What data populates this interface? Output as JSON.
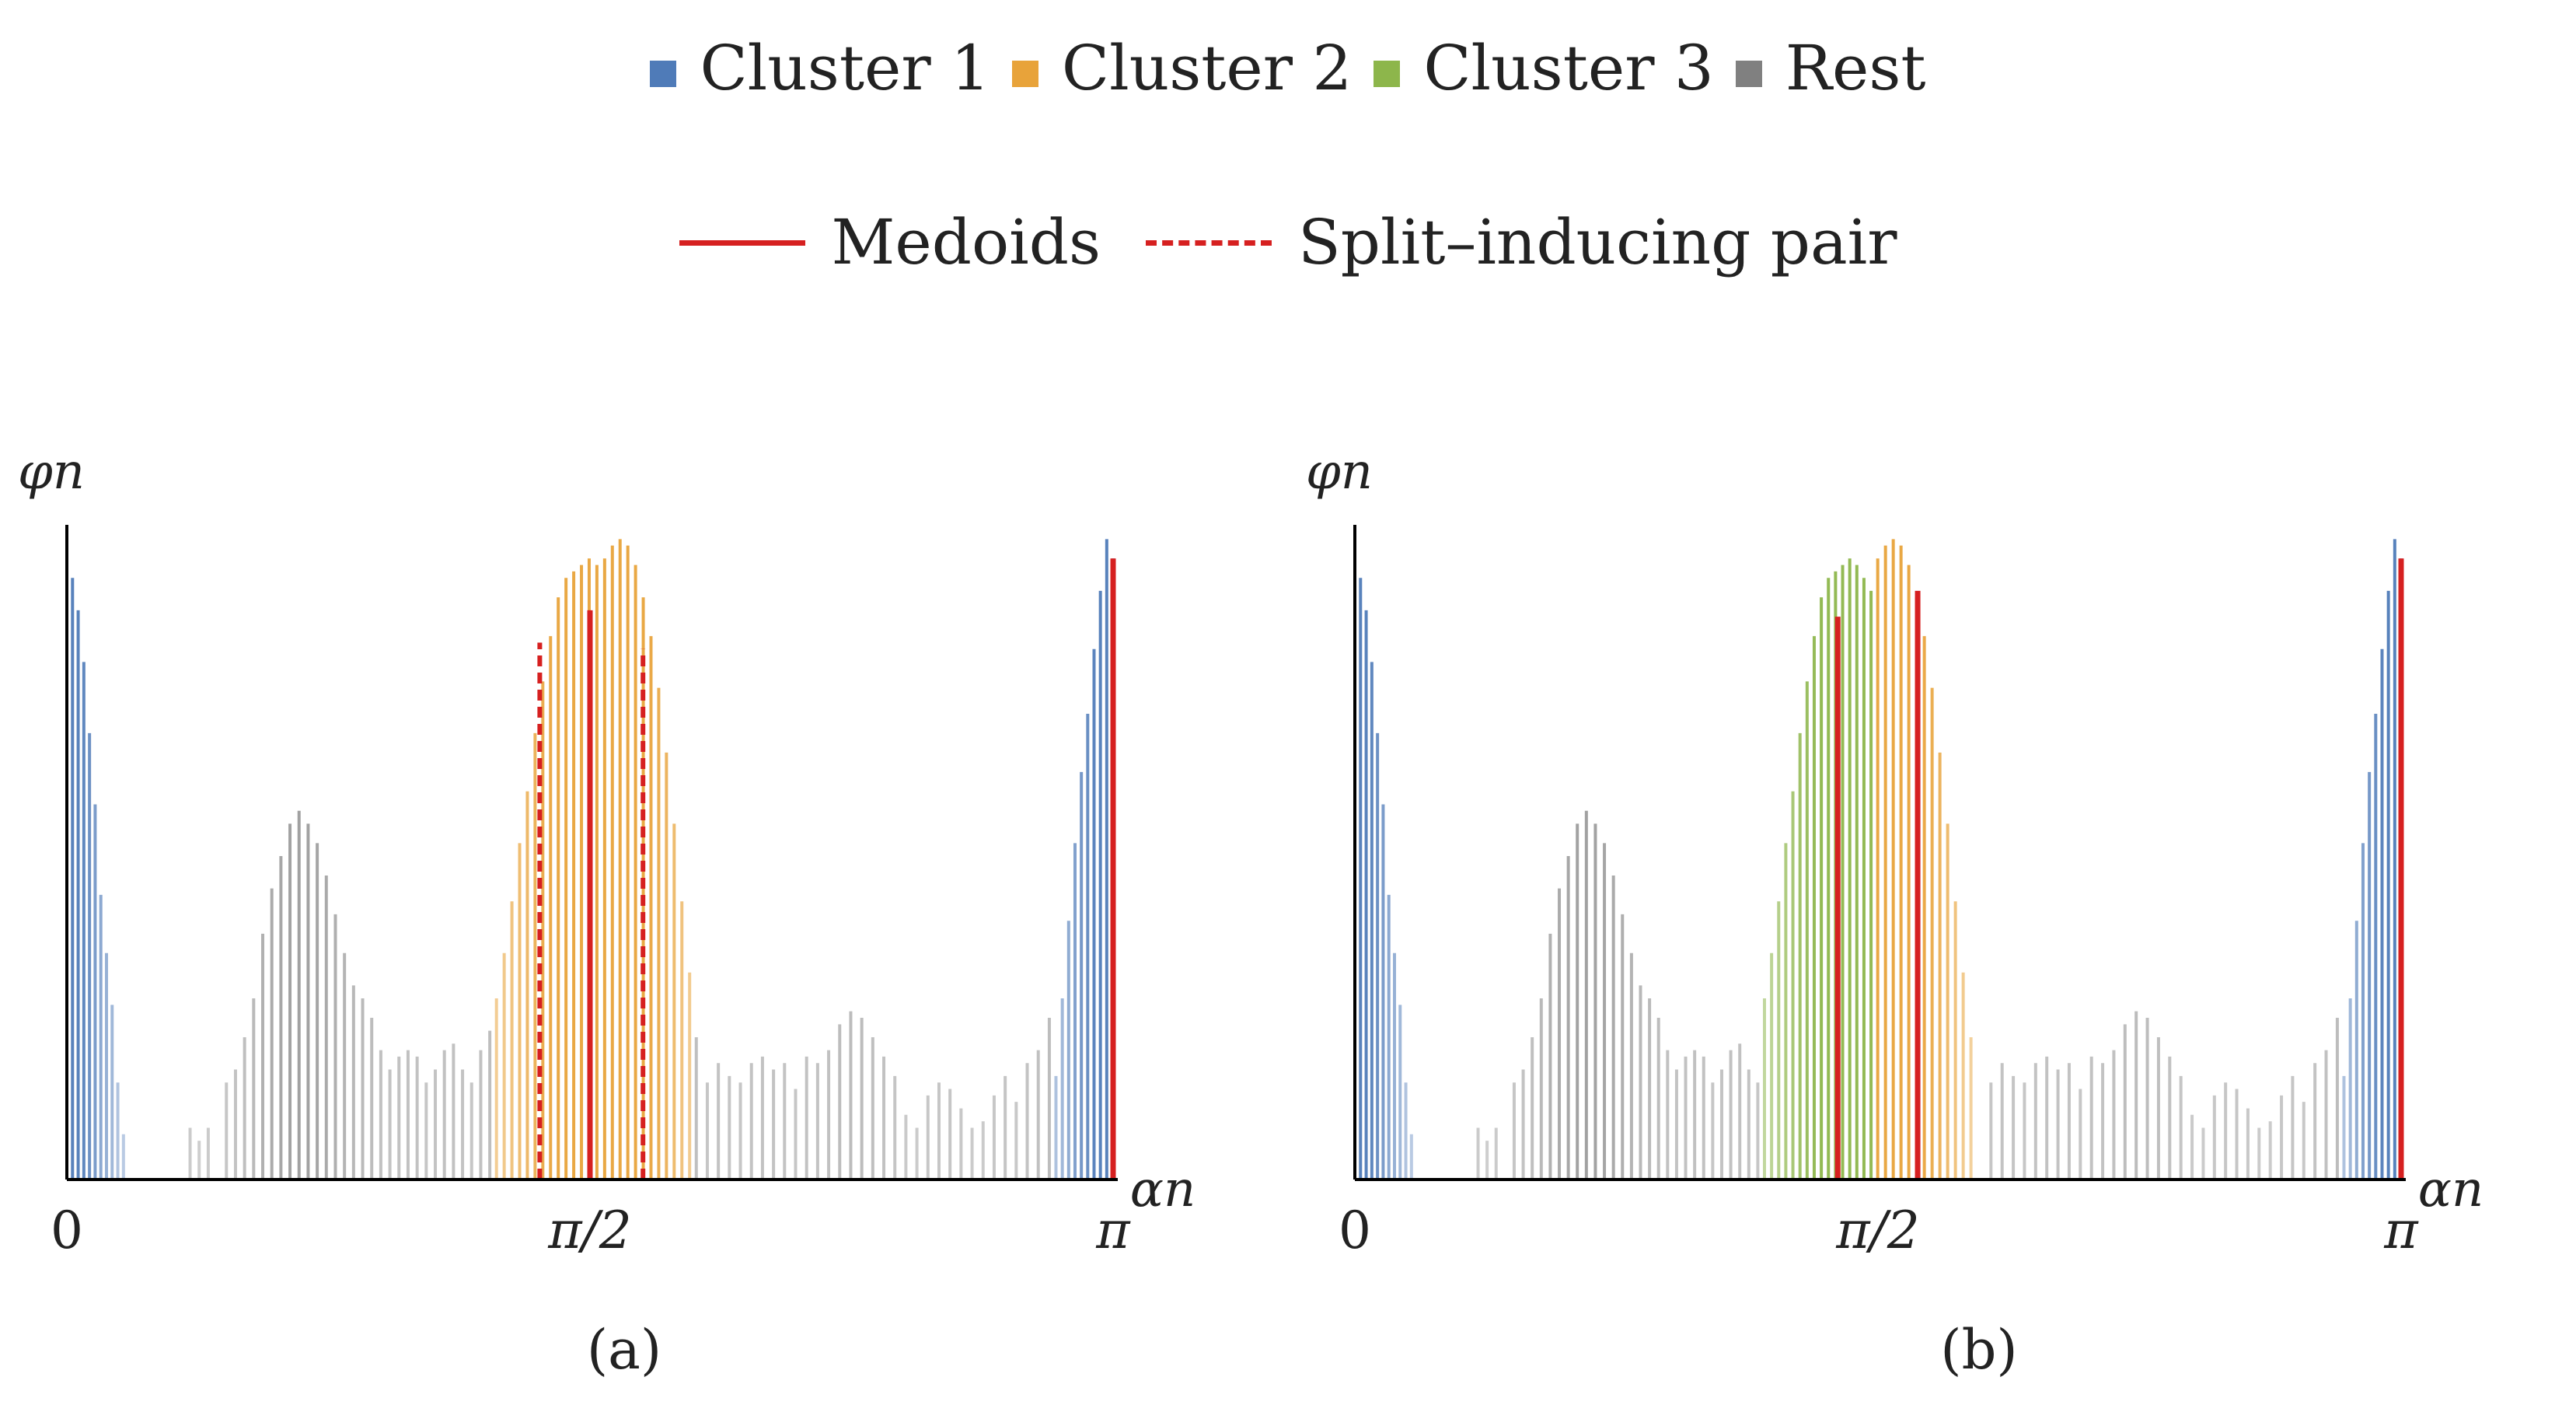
{
  "legend": {
    "clusters": [
      {
        "label": "Cluster 1",
        "color": "#4f7bb8"
      },
      {
        "label": "Cluster 2",
        "color": "#e8a33a"
      },
      {
        "label": "Cluster 3",
        "color": "#8db64b"
      },
      {
        "label": "Rest",
        "color": "#808080"
      }
    ],
    "lines": [
      {
        "label": "Medoids",
        "style": "solid",
        "color": "#d62020"
      },
      {
        "label": "Split–inducing pair",
        "style": "dashed",
        "color": "#d62020"
      }
    ]
  },
  "chart_data": [
    {
      "type": "bar",
      "panel_label": "(a)",
      "panel_letter": "a",
      "ylabel": "φn",
      "xlabel": "αn",
      "xlim": [
        0,
        3.1416
      ],
      "ylim": [
        0,
        1
      ],
      "xticks": [
        {
          "value": 0,
          "label": "0"
        },
        {
          "value": 1.5708,
          "label": "π/2"
        },
        {
          "value": 3.1416,
          "label": "π"
        }
      ],
      "groups": [
        {
          "cluster": "Cluster 1",
          "x_start": 0.0,
          "x_end": 0.17,
          "heights": [
            1.0,
            0.93,
            0.88,
            0.8,
            0.69,
            0.58,
            0.44,
            0.35,
            0.27,
            0.15,
            0.07
          ]
        },
        {
          "cluster": "Rest",
          "x_start": 0.37,
          "x_end": 1.27,
          "heights": [
            0.08,
            0.06,
            0.08,
            0.0,
            0.15,
            0.17,
            0.22,
            0.28,
            0.38,
            0.45,
            0.5,
            0.55,
            0.57,
            0.55,
            0.52,
            0.47,
            0.41,
            0.35,
            0.3,
            0.28,
            0.25,
            0.2,
            0.17,
            0.19,
            0.2,
            0.19,
            0.15,
            0.17,
            0.2,
            0.21,
            0.17,
            0.15,
            0.2,
            0.23
          ]
        },
        {
          "cluster": "Cluster 2",
          "x_start": 1.29,
          "x_end": 1.87,
          "heights": [
            0.28,
            0.35,
            0.43,
            0.52,
            0.6,
            0.69,
            0.77,
            0.84,
            0.9,
            0.93,
            0.94,
            0.95,
            0.96,
            0.95,
            0.96,
            0.98,
            0.99,
            0.98,
            0.95,
            0.9,
            0.84,
            0.76,
            0.66,
            0.55,
            0.43,
            0.32
          ]
        },
        {
          "cluster": "Rest",
          "x_start": 1.89,
          "x_end": 2.95,
          "heights": [
            0.22,
            0.15,
            0.18,
            0.16,
            0.15,
            0.18,
            0.19,
            0.17,
            0.18,
            0.14,
            0.19,
            0.18,
            0.2,
            0.24,
            0.26,
            0.25,
            0.22,
            0.19,
            0.16,
            0.1,
            0.08,
            0.13,
            0.15,
            0.14,
            0.11,
            0.08,
            0.09,
            0.13,
            0.16,
            0.12,
            0.18,
            0.2,
            0.25
          ]
        },
        {
          "cluster": "Cluster 1",
          "x_start": 2.97,
          "x_end": 3.1416,
          "heights": [
            0.16,
            0.28,
            0.4,
            0.52,
            0.63,
            0.72,
            0.82,
            0.91,
            0.99,
            0.96
          ]
        }
      ],
      "medoids": [
        1.5708,
        3.1416
      ],
      "medoid_heights": [
        0.88,
        0.96
      ],
      "split_pair": [
        1.42,
        1.73
      ],
      "split_pair_heights": [
        0.83,
        0.82
      ]
    },
    {
      "type": "bar",
      "panel_label": "(b)",
      "panel_letter": "b",
      "ylabel": "φn",
      "xlabel": "αn",
      "xlim": [
        0,
        3.1416
      ],
      "ylim": [
        0,
        1
      ],
      "xticks": [
        {
          "value": 0,
          "label": "0"
        },
        {
          "value": 1.5708,
          "label": "π/2"
        },
        {
          "value": 3.1416,
          "label": "π"
        }
      ],
      "groups": [
        {
          "cluster": "Cluster 1",
          "x_start": 0.0,
          "x_end": 0.17,
          "heights": [
            1.0,
            0.93,
            0.88,
            0.8,
            0.69,
            0.58,
            0.44,
            0.35,
            0.27,
            0.15,
            0.07
          ]
        },
        {
          "cluster": "Rest",
          "x_start": 0.37,
          "x_end": 1.21,
          "heights": [
            0.08,
            0.06,
            0.08,
            0.0,
            0.15,
            0.17,
            0.22,
            0.28,
            0.38,
            0.45,
            0.5,
            0.55,
            0.57,
            0.55,
            0.52,
            0.47,
            0.41,
            0.35,
            0.3,
            0.28,
            0.25,
            0.2,
            0.17,
            0.19,
            0.2,
            0.19,
            0.15,
            0.17,
            0.2,
            0.21,
            0.17,
            0.15
          ]
        },
        {
          "cluster": "Cluster 3",
          "x_start": 1.23,
          "x_end": 1.55,
          "heights": [
            0.28,
            0.35,
            0.43,
            0.52,
            0.6,
            0.69,
            0.77,
            0.84,
            0.9,
            0.93,
            0.94,
            0.95,
            0.96,
            0.95,
            0.93,
            0.91
          ]
        },
        {
          "cluster": "Cluster 2",
          "x_start": 1.57,
          "x_end": 1.85,
          "heights": [
            0.96,
            0.98,
            0.99,
            0.98,
            0.95,
            0.9,
            0.84,
            0.76,
            0.66,
            0.55,
            0.43,
            0.32,
            0.22
          ]
        },
        {
          "cluster": "Rest",
          "x_start": 1.91,
          "x_end": 2.95,
          "heights": [
            0.15,
            0.18,
            0.16,
            0.15,
            0.18,
            0.19,
            0.17,
            0.18,
            0.14,
            0.19,
            0.18,
            0.2,
            0.24,
            0.26,
            0.25,
            0.22,
            0.19,
            0.16,
            0.1,
            0.08,
            0.13,
            0.15,
            0.14,
            0.11,
            0.08,
            0.09,
            0.13,
            0.16,
            0.12,
            0.18,
            0.2,
            0.25
          ]
        },
        {
          "cluster": "Cluster 1",
          "x_start": 2.97,
          "x_end": 3.1416,
          "heights": [
            0.16,
            0.28,
            0.4,
            0.52,
            0.63,
            0.72,
            0.82,
            0.91,
            0.99,
            0.96
          ]
        }
      ],
      "medoids": [
        1.45,
        1.69,
        3.1416
      ],
      "medoid_heights": [
        0.87,
        0.91,
        0.96
      ],
      "split_pair": [],
      "split_pair_heights": []
    }
  ]
}
